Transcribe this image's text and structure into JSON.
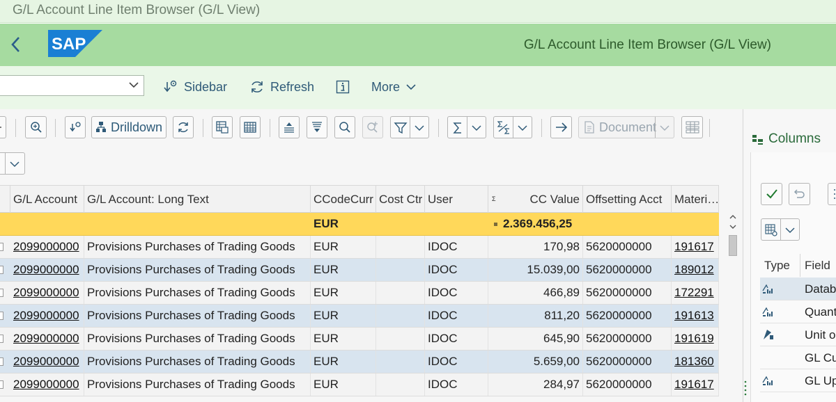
{
  "window": {
    "title": "G/L Account Line Item Browser (G/L View)"
  },
  "shell": {
    "title": "G/L Account Line Item Browser (G/L View)",
    "logo_text": "SAP"
  },
  "app_toolbar": {
    "variant_value": "",
    "sidebar_label": "Sidebar",
    "refresh_label": "Refresh",
    "more_label": "More"
  },
  "grid_toolbar": {
    "drilldown_label": "Drilldown",
    "document_label": "Document"
  },
  "grid": {
    "columns": [
      "G/L Account",
      "G/L Account: Long Text",
      "CCodeCurr",
      "Cost Ctr",
      "User",
      "CC Value",
      "Offsetting Acct",
      "Materi…"
    ],
    "sum_marker": "Σ",
    "total": {
      "currency": "EUR",
      "cc_value": "2.369.456,25"
    },
    "rows": [
      {
        "gl_account": "2099000000",
        "long_text": "Provisions Purchases of Trading Goods",
        "currency": "EUR",
        "cost_ctr": "",
        "user": "IDOC",
        "cc_value": "170,98",
        "offsetting": "5620000000",
        "material": "191617"
      },
      {
        "gl_account": "2099000000",
        "long_text": "Provisions Purchases of Trading Goods",
        "currency": "EUR",
        "cost_ctr": "",
        "user": "IDOC",
        "cc_value": "15.039,00",
        "offsetting": "5620000000",
        "material": "189012"
      },
      {
        "gl_account": "2099000000",
        "long_text": "Provisions Purchases of Trading Goods",
        "currency": "EUR",
        "cost_ctr": "",
        "user": "IDOC",
        "cc_value": "466,89",
        "offsetting": "5620000000",
        "material": "172291"
      },
      {
        "gl_account": "2099000000",
        "long_text": "Provisions Purchases of Trading Goods",
        "currency": "EUR",
        "cost_ctr": "",
        "user": "IDOC",
        "cc_value": "811,20",
        "offsetting": "5620000000",
        "material": "191613"
      },
      {
        "gl_account": "2099000000",
        "long_text": "Provisions Purchases of Trading Goods",
        "currency": "EUR",
        "cost_ctr": "",
        "user": "IDOC",
        "cc_value": "645,90",
        "offsetting": "5620000000",
        "material": "191619"
      },
      {
        "gl_account": "2099000000",
        "long_text": "Provisions Purchases of Trading Goods",
        "currency": "EUR",
        "cost_ctr": "",
        "user": "IDOC",
        "cc_value": "5.659,00",
        "offsetting": "5620000000",
        "material": "181360"
      },
      {
        "gl_account": "2099000000",
        "long_text": "Provisions Purchases of Trading Goods",
        "currency": "EUR",
        "cost_ctr": "",
        "user": "IDOC",
        "cc_value": "284,97",
        "offsetting": "5620000000",
        "material": "191617"
      }
    ]
  },
  "side_panel": {
    "tab_label": "Columns",
    "columns": [
      "Type",
      "Field N"
    ],
    "fields": [
      "Datab",
      "Quant",
      "Unit o",
      "GL Cu",
      "GL Up"
    ]
  },
  "colors": {
    "shell_green": "#a6dba0",
    "total_row": "#ffd85a",
    "odd_row": "#d8e4ef",
    "link_blue": "#2f5a78",
    "sap_blue": "#1a7fd4"
  }
}
